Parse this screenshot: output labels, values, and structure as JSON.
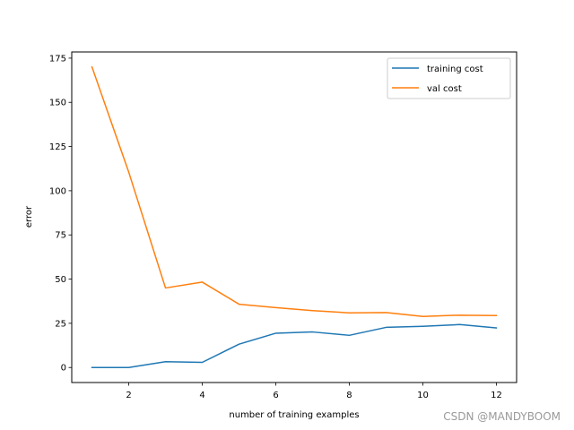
{
  "chart_data": {
    "type": "line",
    "title": "",
    "xlabel": "number of training examples",
    "ylabel": "error",
    "xlim": [
      0.45,
      12.55
    ],
    "ylim": [
      -8.5,
      178.5
    ],
    "xticks": [
      2,
      4,
      6,
      8,
      10,
      12
    ],
    "yticks": [
      0,
      25,
      50,
      75,
      100,
      125,
      150,
      175
    ],
    "grid": false,
    "legend_position": "upper right",
    "x": [
      1,
      2,
      3,
      4,
      5,
      6,
      7,
      8,
      9,
      10,
      11,
      12
    ],
    "series": [
      {
        "name": "training cost",
        "color": "#1f77b4",
        "values": [
          0.0,
          0.0,
          3.3,
          2.9,
          13.2,
          19.4,
          20.1,
          18.2,
          22.7,
          23.3,
          24.3,
          22.4
        ]
      },
      {
        "name": "val cost",
        "color": "#ff7f0e",
        "values": [
          170.0,
          110.5,
          45.0,
          48.3,
          35.8,
          33.9,
          32.2,
          30.9,
          31.1,
          28.9,
          29.6,
          29.4
        ]
      }
    ]
  },
  "watermark": "CSDN @MANDYBOOM"
}
